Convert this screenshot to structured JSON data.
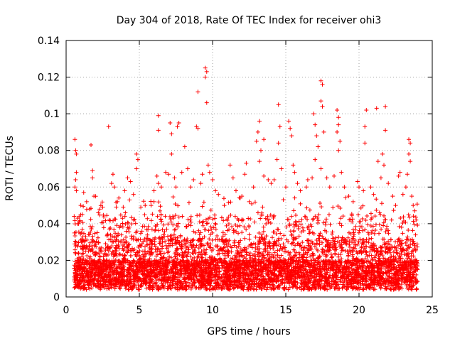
{
  "chart_data": {
    "type": "scatter",
    "title": "Day 304 of 2018, Rate Of TEC Index for receiver ohi3",
    "xlabel": "GPS time / hours",
    "ylabel": "ROTI / TECUs",
    "xlim": [
      0,
      25
    ],
    "ylim": [
      0,
      0.14
    ],
    "xticks": [
      0,
      5,
      10,
      15,
      20,
      25
    ],
    "yticks": [
      0,
      0.02,
      0.04,
      0.06,
      0.08,
      0.1,
      0.12,
      0.14
    ],
    "xtick_labels": [
      "0",
      "5",
      "10",
      "15",
      "20",
      "25"
    ],
    "ytick_labels": [
      "0",
      "0.02",
      "0.04",
      "0.06",
      "0.08",
      "0.1",
      "0.12",
      "0.14"
    ],
    "grid": true,
    "marker": "+",
    "color": "#ff0000",
    "series": [
      {
        "name": "ROTI",
        "points": [
          [
            0.6,
            0.086
          ],
          [
            0.65,
            0.08
          ],
          [
            0.7,
            0.078
          ],
          [
            0.7,
            0.068
          ],
          [
            0.65,
            0.064
          ],
          [
            0.6,
            0.06
          ],
          [
            0.7,
            0.058
          ],
          [
            0.55,
            0.044
          ],
          [
            0.8,
            0.04
          ],
          [
            1.0,
            0.05
          ],
          [
            1.2,
            0.057
          ],
          [
            1.1,
            0.045
          ],
          [
            1.4,
            0.052
          ],
          [
            1.7,
            0.083
          ],
          [
            1.8,
            0.069
          ],
          [
            1.8,
            0.065
          ],
          [
            1.9,
            0.055
          ],
          [
            1.6,
            0.048
          ],
          [
            2.2,
            0.046
          ],
          [
            2.5,
            0.049
          ],
          [
            2.9,
            0.093
          ],
          [
            3.2,
            0.067
          ],
          [
            3.1,
            0.062
          ],
          [
            3.3,
            0.06
          ],
          [
            3.5,
            0.052
          ],
          [
            3.6,
            0.054
          ],
          [
            3.9,
            0.049
          ],
          [
            4.2,
            0.065
          ],
          [
            4.4,
            0.063
          ],
          [
            4.0,
            0.058
          ],
          [
            4.6,
            0.056
          ],
          [
            4.8,
            0.078
          ],
          [
            4.9,
            0.075
          ],
          [
            4.8,
            0.07
          ],
          [
            5.1,
            0.049
          ],
          [
            5.4,
            0.05
          ],
          [
            5.8,
            0.05
          ],
          [
            6.0,
            0.052
          ],
          [
            6.2,
            0.066
          ],
          [
            6.3,
            0.062
          ],
          [
            6.0,
            0.058
          ],
          [
            6.3,
            0.091
          ],
          [
            6.3,
            0.099
          ],
          [
            6.5,
            0.06
          ],
          [
            6.8,
            0.068
          ],
          [
            7.0,
            0.067
          ],
          [
            7.1,
            0.095
          ],
          [
            7.2,
            0.089
          ],
          [
            7.2,
            0.078
          ],
          [
            7.4,
            0.065
          ],
          [
            7.5,
            0.06
          ],
          [
            7.6,
            0.093
          ],
          [
            7.7,
            0.095
          ],
          [
            7.9,
            0.068
          ],
          [
            8.1,
            0.082
          ],
          [
            8.3,
            0.07
          ],
          [
            8.5,
            0.06
          ],
          [
            8.7,
            0.064
          ],
          [
            9.0,
            0.112
          ],
          [
            8.9,
            0.093
          ],
          [
            9.0,
            0.092
          ],
          [
            9.2,
            0.062
          ],
          [
            9.3,
            0.067
          ],
          [
            9.5,
            0.125
          ],
          [
            9.6,
            0.123
          ],
          [
            9.5,
            0.12
          ],
          [
            9.6,
            0.106
          ],
          [
            9.7,
            0.072
          ],
          [
            9.8,
            0.068
          ],
          [
            10.0,
            0.064
          ],
          [
            10.2,
            0.058
          ],
          [
            10.4,
            0.056
          ],
          [
            10.8,
            0.05
          ],
          [
            11.2,
            0.072
          ],
          [
            11.4,
            0.065
          ],
          [
            11.6,
            0.058
          ],
          [
            12.0,
            0.055
          ],
          [
            12.2,
            0.067
          ],
          [
            12.3,
            0.073
          ],
          [
            12.5,
            0.052
          ],
          [
            12.8,
            0.06
          ],
          [
            13.1,
            0.09
          ],
          [
            13.2,
            0.096
          ],
          [
            13.0,
            0.085
          ],
          [
            13.3,
            0.08
          ],
          [
            13.2,
            0.074
          ],
          [
            13.5,
            0.086
          ],
          [
            13.5,
            0.066
          ],
          [
            13.8,
            0.064
          ],
          [
            14.0,
            0.062
          ],
          [
            14.2,
            0.064
          ],
          [
            14.4,
            0.075
          ],
          [
            14.5,
            0.105
          ],
          [
            14.6,
            0.093
          ],
          [
            14.5,
            0.084
          ],
          [
            14.7,
            0.07
          ],
          [
            15.0,
            0.06
          ],
          [
            15.2,
            0.096
          ],
          [
            15.3,
            0.092
          ],
          [
            15.4,
            0.088
          ],
          [
            15.5,
            0.072
          ],
          [
            15.6,
            0.068
          ],
          [
            15.8,
            0.062
          ],
          [
            16.0,
            0.058
          ],
          [
            16.4,
            0.06
          ],
          [
            16.5,
            0.064
          ],
          [
            16.8,
            0.065
          ],
          [
            16.9,
            0.1
          ],
          [
            17.0,
            0.094
          ],
          [
            17.1,
            0.088
          ],
          [
            17.2,
            0.082
          ],
          [
            17.0,
            0.075
          ],
          [
            17.4,
            0.118
          ],
          [
            17.5,
            0.116
          ],
          [
            17.4,
            0.107
          ],
          [
            17.5,
            0.104
          ],
          [
            17.6,
            0.09
          ],
          [
            17.4,
            0.07
          ],
          [
            17.8,
            0.065
          ],
          [
            18.0,
            0.06
          ],
          [
            18.3,
            0.066
          ],
          [
            18.5,
            0.102
          ],
          [
            18.6,
            0.098
          ],
          [
            18.6,
            0.094
          ],
          [
            18.5,
            0.09
          ],
          [
            18.7,
            0.085
          ],
          [
            18.6,
            0.08
          ],
          [
            18.8,
            0.068
          ],
          [
            19.0,
            0.06
          ],
          [
            19.3,
            0.055
          ],
          [
            19.6,
            0.052
          ],
          [
            19.9,
            0.063
          ],
          [
            20.0,
            0.06
          ],
          [
            20.3,
            0.058
          ],
          [
            20.4,
            0.093
          ],
          [
            20.4,
            0.084
          ],
          [
            20.5,
            0.102
          ],
          [
            20.8,
            0.06
          ],
          [
            21.0,
            0.056
          ],
          [
            21.2,
            0.103
          ],
          [
            21.3,
            0.074
          ],
          [
            21.5,
            0.065
          ],
          [
            21.6,
            0.078
          ],
          [
            21.7,
            0.072
          ],
          [
            21.8,
            0.104
          ],
          [
            21.8,
            0.091
          ],
          [
            22.0,
            0.062
          ],
          [
            22.3,
            0.055
          ],
          [
            22.5,
            0.05
          ],
          [
            22.7,
            0.066
          ],
          [
            22.8,
            0.068
          ],
          [
            23.0,
            0.056
          ],
          [
            23.2,
            0.06
          ],
          [
            23.4,
            0.086
          ],
          [
            23.5,
            0.084
          ],
          [
            23.4,
            0.078
          ],
          [
            23.5,
            0.074
          ],
          [
            23.3,
            0.067
          ],
          [
            23.6,
            0.055
          ],
          [
            23.7,
            0.05
          ],
          [
            23.8,
            0.047
          ],
          [
            23.9,
            0.042
          ]
        ]
      }
    ]
  }
}
